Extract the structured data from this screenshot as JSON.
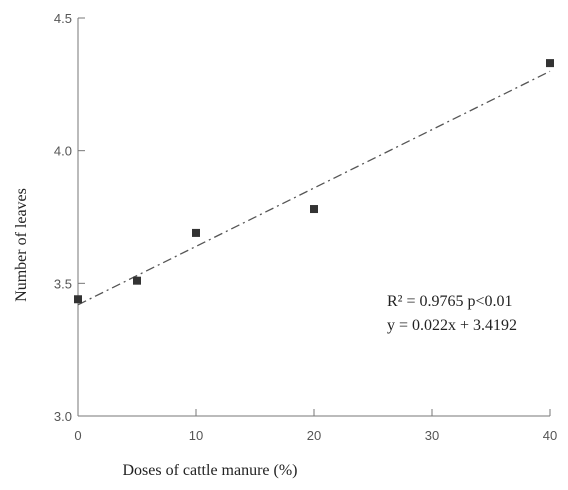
{
  "chart_data": {
    "type": "scatter",
    "title": "",
    "xlabel": "Doses of cattle manure (%)",
    "ylabel": "Number of leaves",
    "xlim": [
      0,
      40
    ],
    "ylim": [
      3.0,
      4.5
    ],
    "xticks": [
      0,
      10,
      20,
      30,
      40
    ],
    "yticks": [
      3.0,
      3.5,
      4.0,
      4.5
    ],
    "xtick_labels": [
      "0",
      "10",
      "20",
      "30",
      "40"
    ],
    "ytick_labels": [
      "3.0",
      "3.5",
      "4.0",
      "4.5"
    ],
    "grid": false,
    "legend": "none",
    "series": [
      {
        "x": [
          0,
          5,
          10,
          20,
          40
        ],
        "y": [
          3.44,
          3.51,
          3.69,
          3.78,
          4.33
        ],
        "marker": "square",
        "color": "#333333"
      }
    ],
    "trendline": {
      "slope": 0.022,
      "intercept": 3.4192,
      "style": "dash-dot",
      "color": "#555555"
    },
    "annotations": [
      "R² = 0.9765   p<0.01",
      "y = 0.022x + 3.4192"
    ]
  }
}
